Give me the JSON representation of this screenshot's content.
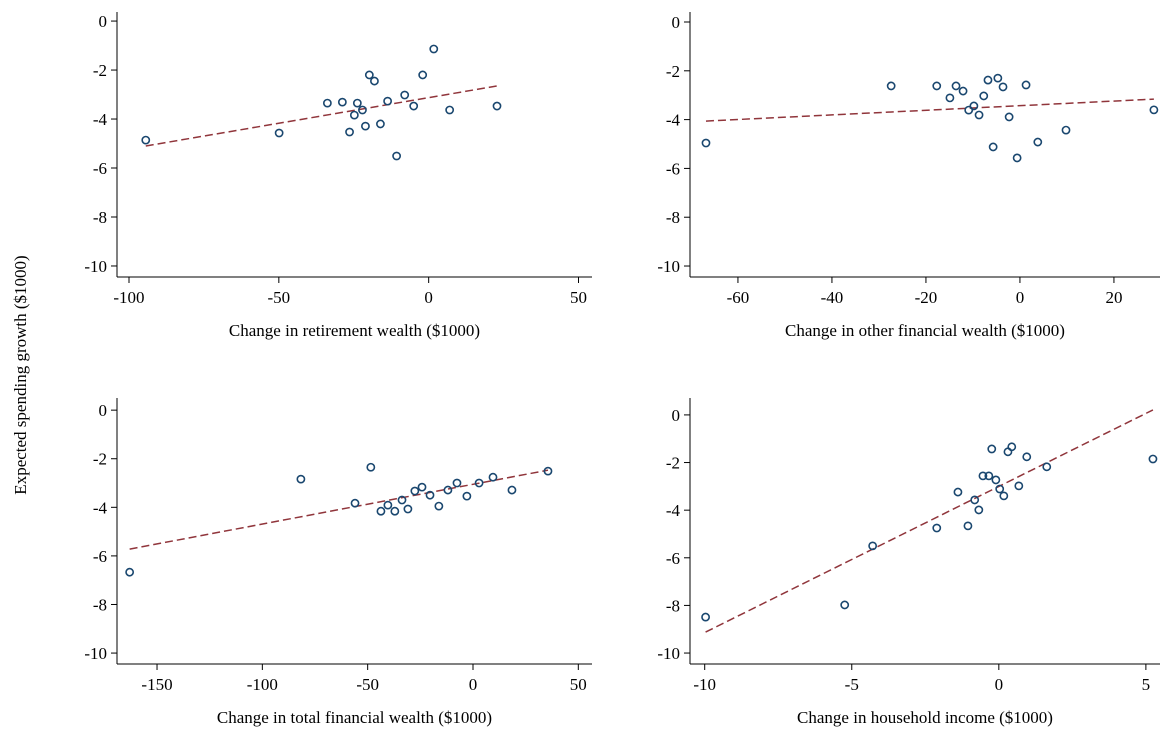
{
  "ylabel": "Expected spending growth ($1000)",
  "chart_data": [
    {
      "type": "scatter",
      "xlabel": "Change in retirement wealth ($1000)",
      "x": [
        -94.4,
        -49.9,
        -33.8,
        -28.8,
        -26.4,
        -24.8,
        -23.8,
        -22.1,
        -21.1,
        -19.8,
        -18.1,
        -16.1,
        -13.7,
        -10.7,
        -8.0,
        -5.0,
        -2.0,
        1.7,
        7.0,
        22.8
      ],
      "y": [
        -4.86,
        -4.57,
        -3.35,
        -3.31,
        -4.53,
        -3.84,
        -3.35,
        -3.63,
        -4.29,
        -2.2,
        -2.45,
        -4.2,
        -3.27,
        -5.51,
        -3.02,
        -3.47,
        -2.2,
        -1.14,
        -3.63,
        -3.47
      ],
      "color": "#1a476f",
      "fit": {
        "x": [
          -94.4,
          22.8
        ],
        "y": [
          -5.1,
          -2.65
        ],
        "color": "#90353b",
        "dashed": true
      },
      "xlim": [
        -104,
        54.5
      ],
      "ylim": [
        -10.45,
        0.37
      ],
      "xticks": [
        -100,
        -50,
        0,
        50
      ],
      "yticks": [
        0,
        -2,
        -4,
        -6,
        -8,
        -10
      ]
    },
    {
      "type": "scatter",
      "xlabel": "Change in other financial wealth ($1000)",
      "x": [
        -66.8,
        -27.4,
        -17.7,
        -14.9,
        -13.6,
        -12.1,
        -10.9,
        -9.8,
        -8.7,
        -7.7,
        -6.8,
        -5.7,
        -4.7,
        -3.6,
        -2.3,
        -0.6,
        1.3,
        3.8,
        9.8,
        28.5
      ],
      "y": [
        -4.96,
        -2.62,
        -2.62,
        -3.11,
        -2.62,
        -2.83,
        -3.61,
        -3.44,
        -3.81,
        -3.03,
        -2.38,
        -5.12,
        -2.3,
        -2.66,
        -3.89,
        -5.57,
        -2.58,
        -4.92,
        -4.43,
        -3.6
      ],
      "color": "#1a476f",
      "fit": {
        "x": [
          -66.8,
          28.5
        ],
        "y": [
          -4.06,
          -3.16
        ],
        "color": "#90353b",
        "dashed": true
      },
      "xlim": [
        -70.2,
        29.8
      ],
      "ylim": [
        -10.45,
        0.41
      ],
      "xticks": [
        -60,
        -40,
        -20,
        0,
        20
      ],
      "yticks": [
        0,
        -2,
        -4,
        -6,
        -8,
        -10
      ]
    },
    {
      "type": "scatter",
      "xlabel": "Change in total financial wealth ($1000)",
      "x": [
        -163,
        -81.7,
        -56,
        -48.5,
        -43.7,
        -40.4,
        -37.1,
        -33.7,
        -30.9,
        -27.6,
        -24.2,
        -20.4,
        -16.2,
        -11.9,
        -7.6,
        -2.9,
        2.9,
        9.5,
        18.5,
        35.6
      ],
      "y": [
        -6.67,
        -2.84,
        -3.83,
        -2.35,
        -4.16,
        -3.91,
        -4.16,
        -3.7,
        -4.07,
        -3.33,
        -3.17,
        -3.5,
        -3.95,
        -3.29,
        -3.0,
        -3.54,
        -3.0,
        -2.76,
        -3.29,
        -2.51
      ],
      "color": "#1a476f",
      "fit": {
        "x": [
          -163,
          35.6
        ],
        "y": [
          -5.72,
          -2.47
        ],
        "color": "#90353b",
        "dashed": true
      },
      "xlim": [
        -169,
        56.5
      ],
      "ylim": [
        -10.45,
        0.5
      ],
      "xticks": [
        -150,
        -100,
        -50,
        0,
        50
      ],
      "yticks": [
        0,
        -2,
        -4,
        -6,
        -8,
        -10
      ]
    },
    {
      "type": "scatter",
      "xlabel": "Change in household income ($1000)",
      "x": [
        -9.97,
        -5.24,
        -4.29,
        -2.11,
        -1.39,
        -1.05,
        -0.82,
        -0.68,
        -0.54,
        -0.34,
        -0.24,
        -0.1,
        0.03,
        0.17,
        0.31,
        0.44,
        0.68,
        0.95,
        1.63,
        5.24
      ],
      "y": [
        -8.49,
        -7.98,
        -5.5,
        -4.75,
        -3.24,
        -4.66,
        -3.57,
        -3.99,
        -2.56,
        -2.56,
        -1.43,
        -2.73,
        -3.11,
        -3.4,
        -1.55,
        -1.34,
        -2.98,
        -1.76,
        -2.18,
        -1.85
      ],
      "color": "#1a476f",
      "fit": {
        "x": [
          -9.97,
          5.24
        ],
        "y": [
          -9.12,
          0.21
        ],
        "color": "#90353b",
        "dashed": true
      },
      "xlim": [
        -10.5,
        5.48
      ],
      "ylim": [
        -10.46,
        0.71
      ],
      "xticks": [
        -10,
        -5,
        0,
        5
      ],
      "yticks": [
        0,
        -2,
        -4,
        -6,
        -8,
        -10
      ]
    }
  ]
}
